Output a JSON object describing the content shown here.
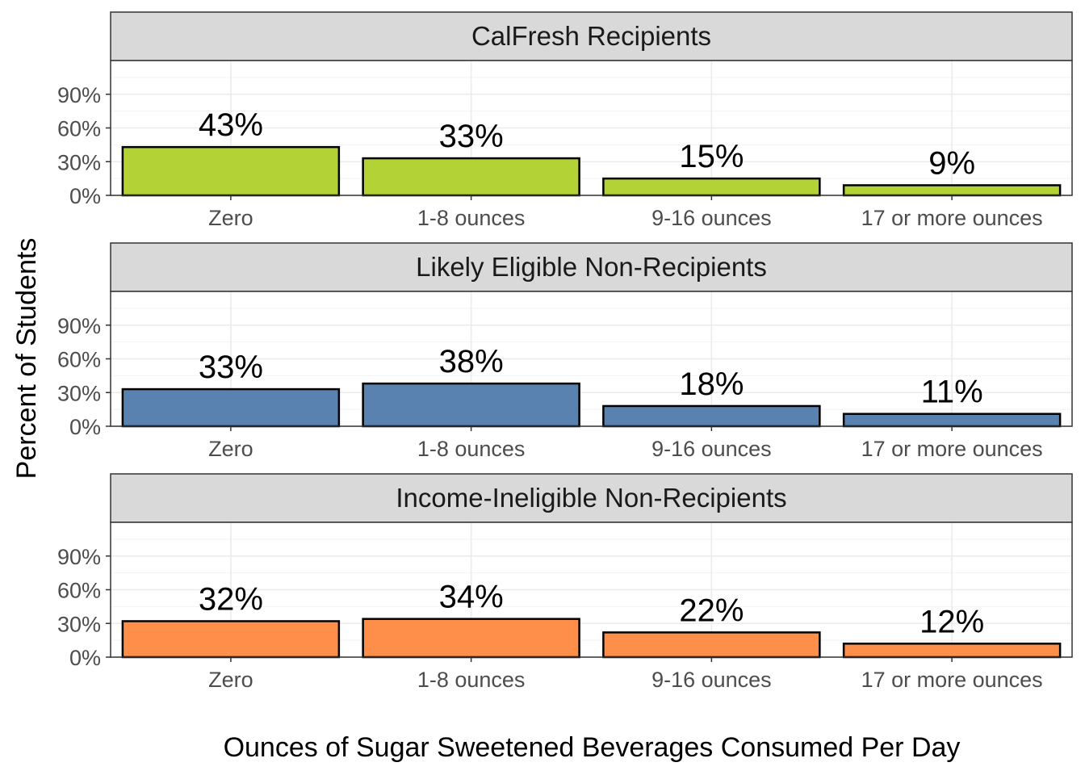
{
  "chart_data": {
    "type": "bar",
    "xlabel": "Ounces of Sugar Sweetened Beverages Consumed Per Day",
    "ylabel": "Percent of Students",
    "categories": [
      "Zero",
      "1-8 ounces",
      "9-16 ounces",
      "17 or more ounces"
    ],
    "y_ticks": [
      "0%",
      "30%",
      "60%",
      "90%"
    ],
    "ylim": [
      0,
      1.2
    ],
    "grid": true,
    "legend": "none",
    "facets": [
      {
        "title": "CalFresh Recipients",
        "color": "#b2d235",
        "values": [
          43,
          33,
          15,
          9
        ],
        "labels": [
          "43%",
          "33%",
          "15%",
          "9%"
        ]
      },
      {
        "title": "Likely Eligible Non-Recipients",
        "color": "#5a82b0",
        "values": [
          33,
          38,
          18,
          11
        ],
        "labels": [
          "33%",
          "38%",
          "18%",
          "11%"
        ]
      },
      {
        "title": "Income-Ineligible Non-Recipients",
        "color": "#fd8f4a",
        "values": [
          32,
          34,
          22,
          12
        ],
        "labels": [
          "32%",
          "34%",
          "22%",
          "12%"
        ]
      }
    ]
  }
}
